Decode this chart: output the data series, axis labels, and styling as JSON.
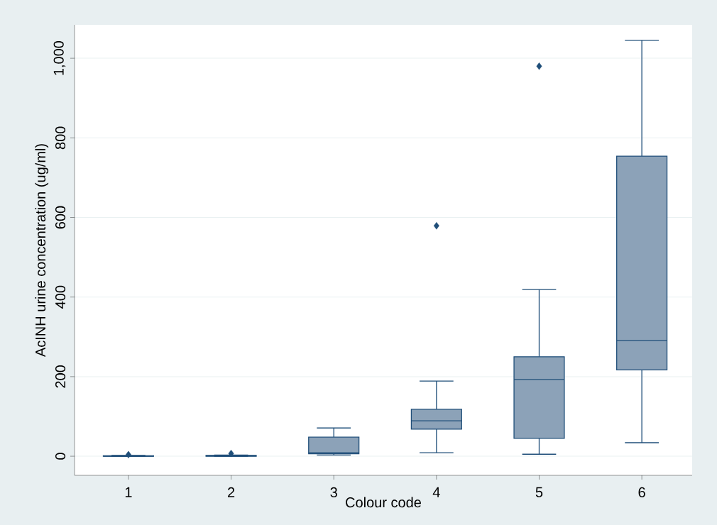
{
  "chart_data": {
    "type": "box",
    "xlabel": "Colour code",
    "ylabel": "AcINH urine concentration (ug/ml)",
    "categories": [
      "1",
      "2",
      "3",
      "4",
      "5",
      "6"
    ],
    "boxes": [
      {
        "low": 0,
        "q1": 0,
        "median": 0,
        "q3": 1,
        "high": 2,
        "outliers": [
          4
        ]
      },
      {
        "low": 0,
        "q1": 0,
        "median": 1,
        "q3": 2,
        "high": 3,
        "outliers": [
          7
        ]
      },
      {
        "low": 3,
        "q1": 6,
        "median": 9,
        "q3": 48,
        "high": 71
      },
      {
        "low": 9,
        "q1": 68,
        "median": 89,
        "q3": 118,
        "high": 189,
        "outliers": [
          579
        ]
      },
      {
        "low": 5,
        "q1": 45,
        "median": 193,
        "q3": 250,
        "high": 419,
        "outliers": [
          980
        ]
      },
      {
        "low": 34,
        "q1": 217,
        "median": 291,
        "q3": 754,
        "high": 1045
      }
    ],
    "color": "#8ca2b8",
    "ylim": [
      -48,
      1084
    ],
    "yticks": [
      0,
      200,
      400,
      600,
      800,
      {
        "value": 1000,
        "label": "1,000"
      }
    ],
    "grid": "y",
    "marker": "diamond"
  }
}
